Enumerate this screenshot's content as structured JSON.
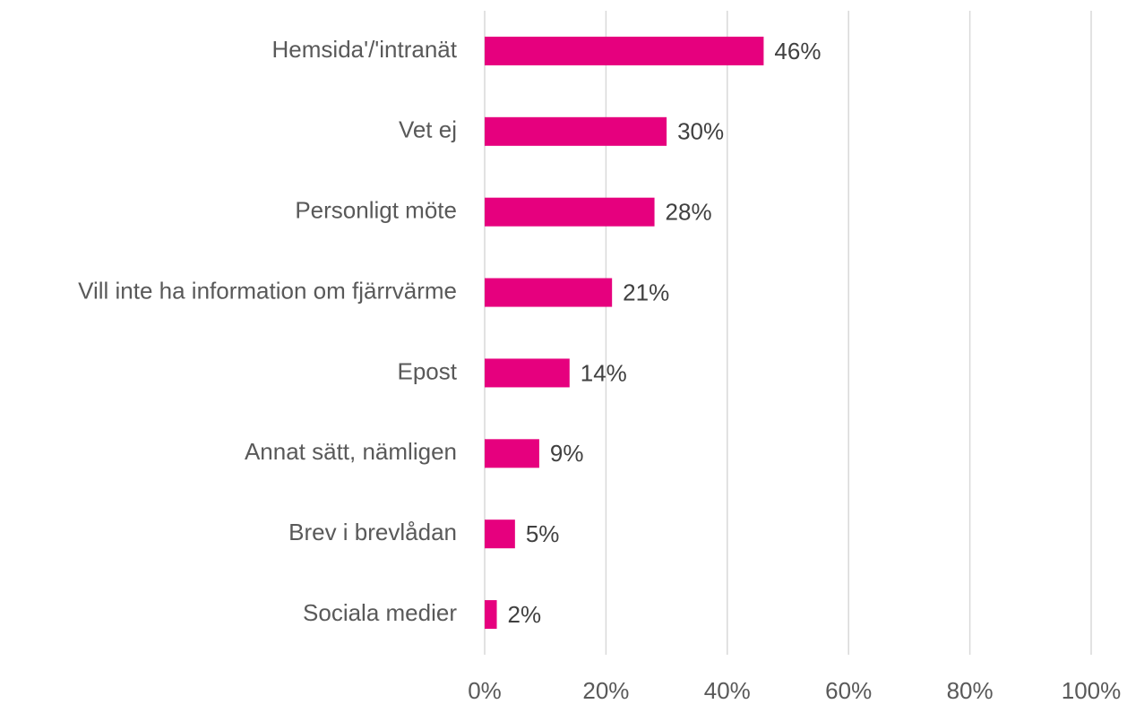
{
  "chart_data": {
    "type": "hbar",
    "categories": [
      "Hemsida'/'intranät",
      "Vet ej",
      "Personligt möte",
      "Vill inte ha information om fjärrvärme",
      "Epost",
      "Annat sätt, nämligen",
      "Brev i brevlådan",
      "Sociala medier"
    ],
    "values": [
      46,
      30,
      28,
      21,
      14,
      9,
      5,
      2
    ],
    "value_labels": [
      "46%",
      "30%",
      "28%",
      "21%",
      "14%",
      "9%",
      "5%",
      "2%"
    ],
    "color": "#e6007e",
    "xlim": [
      0,
      100
    ],
    "xticks": [
      {
        "value": 0,
        "label": "0%"
      },
      {
        "value": 20,
        "label": "20%"
      },
      {
        "value": 40,
        "label": "40%"
      },
      {
        "value": 60,
        "label": "60%"
      },
      {
        "value": 80,
        "label": "80%"
      },
      {
        "value": 100,
        "label": "100%"
      }
    ],
    "grid": true
  }
}
